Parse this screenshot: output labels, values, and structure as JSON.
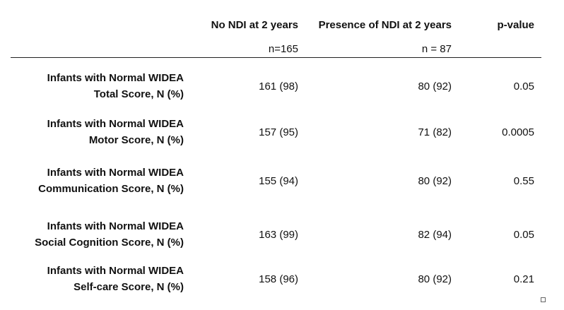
{
  "header": {
    "col_no_ndi": "No NDI at 2 years",
    "col_ndi": "Presence of NDI at 2 years",
    "col_p": "p-value",
    "n_no_ndi": "n=165",
    "n_ndi": "n = 87"
  },
  "rows": [
    {
      "label_line1": "Infants with Normal WIDEA",
      "label_line2": "Total Score, N (%)",
      "no_ndi": "161 (98)",
      "ndi": "80 (92)",
      "p": "0.05"
    },
    {
      "label_line1": "Infants with Normal WIDEA",
      "label_line2": "Motor Score, N (%)",
      "no_ndi": "157 (95)",
      "ndi": "71 (82)",
      "p": "0.0005"
    },
    {
      "label_line1": "Infants with Normal WIDEA",
      "label_line2": "Communication Score, N (%)",
      "no_ndi": "155 (94)",
      "ndi": "80 (92)",
      "p": "0.55"
    },
    {
      "label_line1": "Infants with Normal WIDEA",
      "label_line2": "Social Cognition Score, N (%)",
      "no_ndi": "163 (99)",
      "ndi": "82 (94)",
      "p": "0.05"
    },
    {
      "label_line1": "Infants with Normal WIDEA",
      "label_line2": "Self-care Score, N (%)",
      "no_ndi": "158 (96)",
      "ndi": "80 (92)",
      "p": "0.21"
    }
  ]
}
